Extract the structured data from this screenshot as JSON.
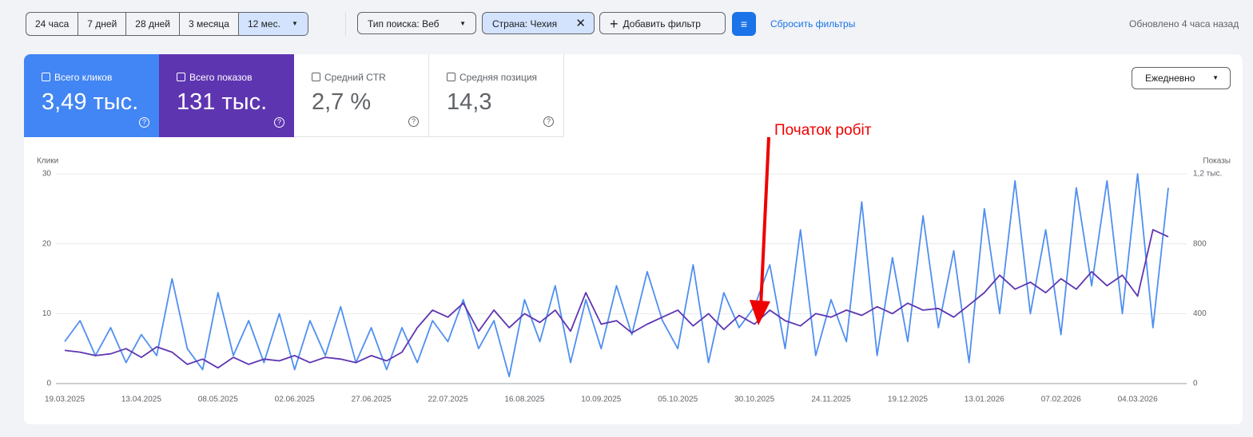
{
  "toolbar": {
    "periods": [
      "24 часа",
      "7 дней",
      "28 дней",
      "3 месяца",
      "12 мес."
    ],
    "filters": [
      "Тип поиска: Веб",
      "Страна: Чехия"
    ],
    "add_filter": "Добавить фильтр",
    "reset": "Сбросить фильтры",
    "updated": "Обновлено 4 часа назад"
  },
  "metrics": [
    {
      "label": "Всего кликов",
      "value": "3,49 тыс."
    },
    {
      "label": "Всего показов",
      "value": "131 тыс."
    },
    {
      "label": "Средний CTR",
      "value": "2,7 %"
    },
    {
      "label": "Средняя позиция",
      "value": "14,3"
    }
  ],
  "granularity": "Ежедневно",
  "chart_data": {
    "type": "line",
    "y_label": "Клики",
    "y2_label": "Показы",
    "annotation": "Початок робіт",
    "categories": [
      "19.03.2025",
      null,
      null,
      null,
      null,
      "13.04.2025",
      null,
      null,
      null,
      null,
      "08.05.2025",
      null,
      null,
      null,
      null,
      "02.06.2025",
      null,
      null,
      null,
      null,
      "27.06.2025",
      null,
      null,
      null,
      null,
      "22.07.2025",
      null,
      null,
      null,
      null,
      "16.08.2025",
      null,
      null,
      null,
      null,
      "10.09.2025",
      null,
      null,
      null,
      null,
      "05.10.2025",
      null,
      null,
      null,
      null,
      "30.10.2025",
      null,
      null,
      null,
      null,
      "24.11.2025",
      null,
      null,
      null,
      null,
      "19.12.2025",
      null,
      null,
      null,
      null,
      "13.01.2026",
      null,
      null,
      null,
      null,
      "07.02.2026",
      null,
      null,
      null,
      null,
      "04.03.2026",
      null,
      null
    ],
    "ylim": [
      0,
      30
    ],
    "yticks": [
      0,
      10,
      20,
      30
    ],
    "y2lim": [
      0,
      1200
    ],
    "y2ticks": [
      0,
      400,
      800,
      {
        "value": 1200,
        "label": "1,2 тыс."
      }
    ],
    "grid": true,
    "series": [
      {
        "color": "#4f8ff0",
        "values": [
          6,
          9,
          4,
          8,
          3,
          7,
          4,
          15,
          5,
          2,
          13,
          4,
          9,
          3,
          10,
          2,
          9,
          4,
          11,
          3,
          8,
          2,
          8,
          3,
          9,
          6,
          12,
          5,
          9,
          1,
          12,
          6,
          14,
          3,
          12,
          5,
          14,
          7,
          16,
          9,
          5,
          17,
          3,
          13,
          8,
          11,
          17,
          5,
          22,
          4,
          12,
          6,
          26,
          4,
          18,
          6,
          24,
          8,
          19,
          3,
          25,
          10,
          29,
          10,
          22,
          7,
          28,
          14,
          29,
          10,
          30,
          8,
          28
        ]
      },
      {
        "color": "#5e35b1",
        "axis": "y2",
        "values": [
          190,
          180,
          160,
          170,
          200,
          150,
          210,
          180,
          110,
          140,
          90,
          150,
          110,
          140,
          130,
          160,
          120,
          150,
          140,
          120,
          160,
          130,
          180,
          320,
          420,
          380,
          460,
          300,
          420,
          320,
          400,
          350,
          420,
          300,
          520,
          340,
          360,
          290,
          340,
          380,
          420,
          330,
          400,
          310,
          390,
          340,
          420,
          360,
          330,
          400,
          380,
          420,
          390,
          440,
          400,
          460,
          420,
          430,
          380,
          450,
          520,
          620,
          540,
          580,
          520,
          600,
          540,
          640,
          560,
          620,
          500,
          880,
          840
        ]
      }
    ]
  }
}
